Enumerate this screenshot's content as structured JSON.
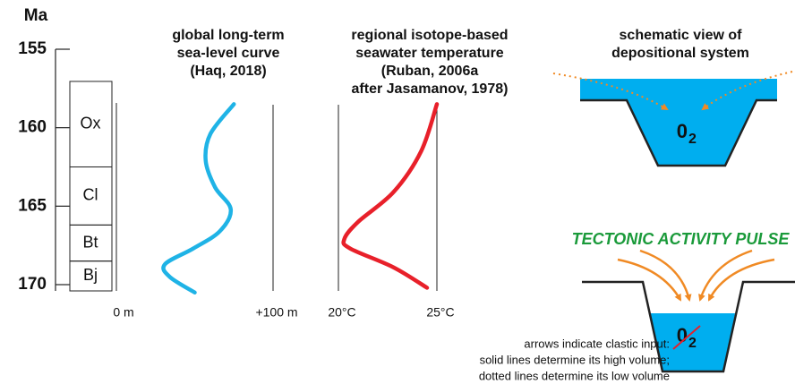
{
  "age_axis": {
    "label": "Ma",
    "lim": [
      155,
      170.4
    ],
    "ticks": [
      155,
      160,
      165,
      170
    ]
  },
  "stages": [
    {
      "name": "Ox",
      "top": 157.05,
      "base": 162.5
    },
    {
      "name": "Cl",
      "top": 162.5,
      "base": 166.2
    },
    {
      "name": "Bt",
      "top": 166.2,
      "base": 168.5
    },
    {
      "name": "Bj",
      "top": 168.5,
      "base": 170.4
    }
  ],
  "sea_level": {
    "title": [
      "global long-term",
      "sea-level curve",
      "(Haq, 2018)"
    ],
    "color": "#1fb3e6",
    "lim": [
      0,
      100
    ],
    "ticks": [
      {
        "value": 0,
        "label": "0 m"
      },
      {
        "value": 100,
        "label": "+100 m"
      }
    ],
    "ages": [
      158.5,
      160.4,
      162.1,
      163.8,
      165.2,
      166.6,
      167.7,
      168.7,
      169.5,
      170.5
    ],
    "values": [
      75,
      60,
      57,
      63,
      73,
      66,
      49,
      31,
      34,
      50
    ]
  },
  "temperature": {
    "title": [
      "regional isotope-based",
      "seawater temperature",
      "(Ruban, 2006a",
      "after Jasamanov, 1978)"
    ],
    "color": "#e8202a",
    "lim": [
      20,
      25
    ],
    "ticks": [
      {
        "value": 20,
        "label": "20°C"
      },
      {
        "value": 25,
        "label": "25°C"
      }
    ],
    "ages": [
      158.5,
      161.5,
      164.1,
      166.0,
      167.1,
      167.7,
      168.9,
      170.2
    ],
    "values": [
      25,
      24.2,
      22.8,
      21,
      20.3,
      20.6,
      22.8,
      24.5
    ]
  },
  "schematic": {
    "title": [
      "schematic view of",
      "depositional system"
    ],
    "pulse": "TECTONIC ACTIVITY PULSE",
    "oxygen": "0",
    "oxygen_sub": "2",
    "caption": [
      "arrows indicate clastic input:",
      "solid lines determine its high volume;",
      "dotted lines determine its low volume"
    ]
  }
}
